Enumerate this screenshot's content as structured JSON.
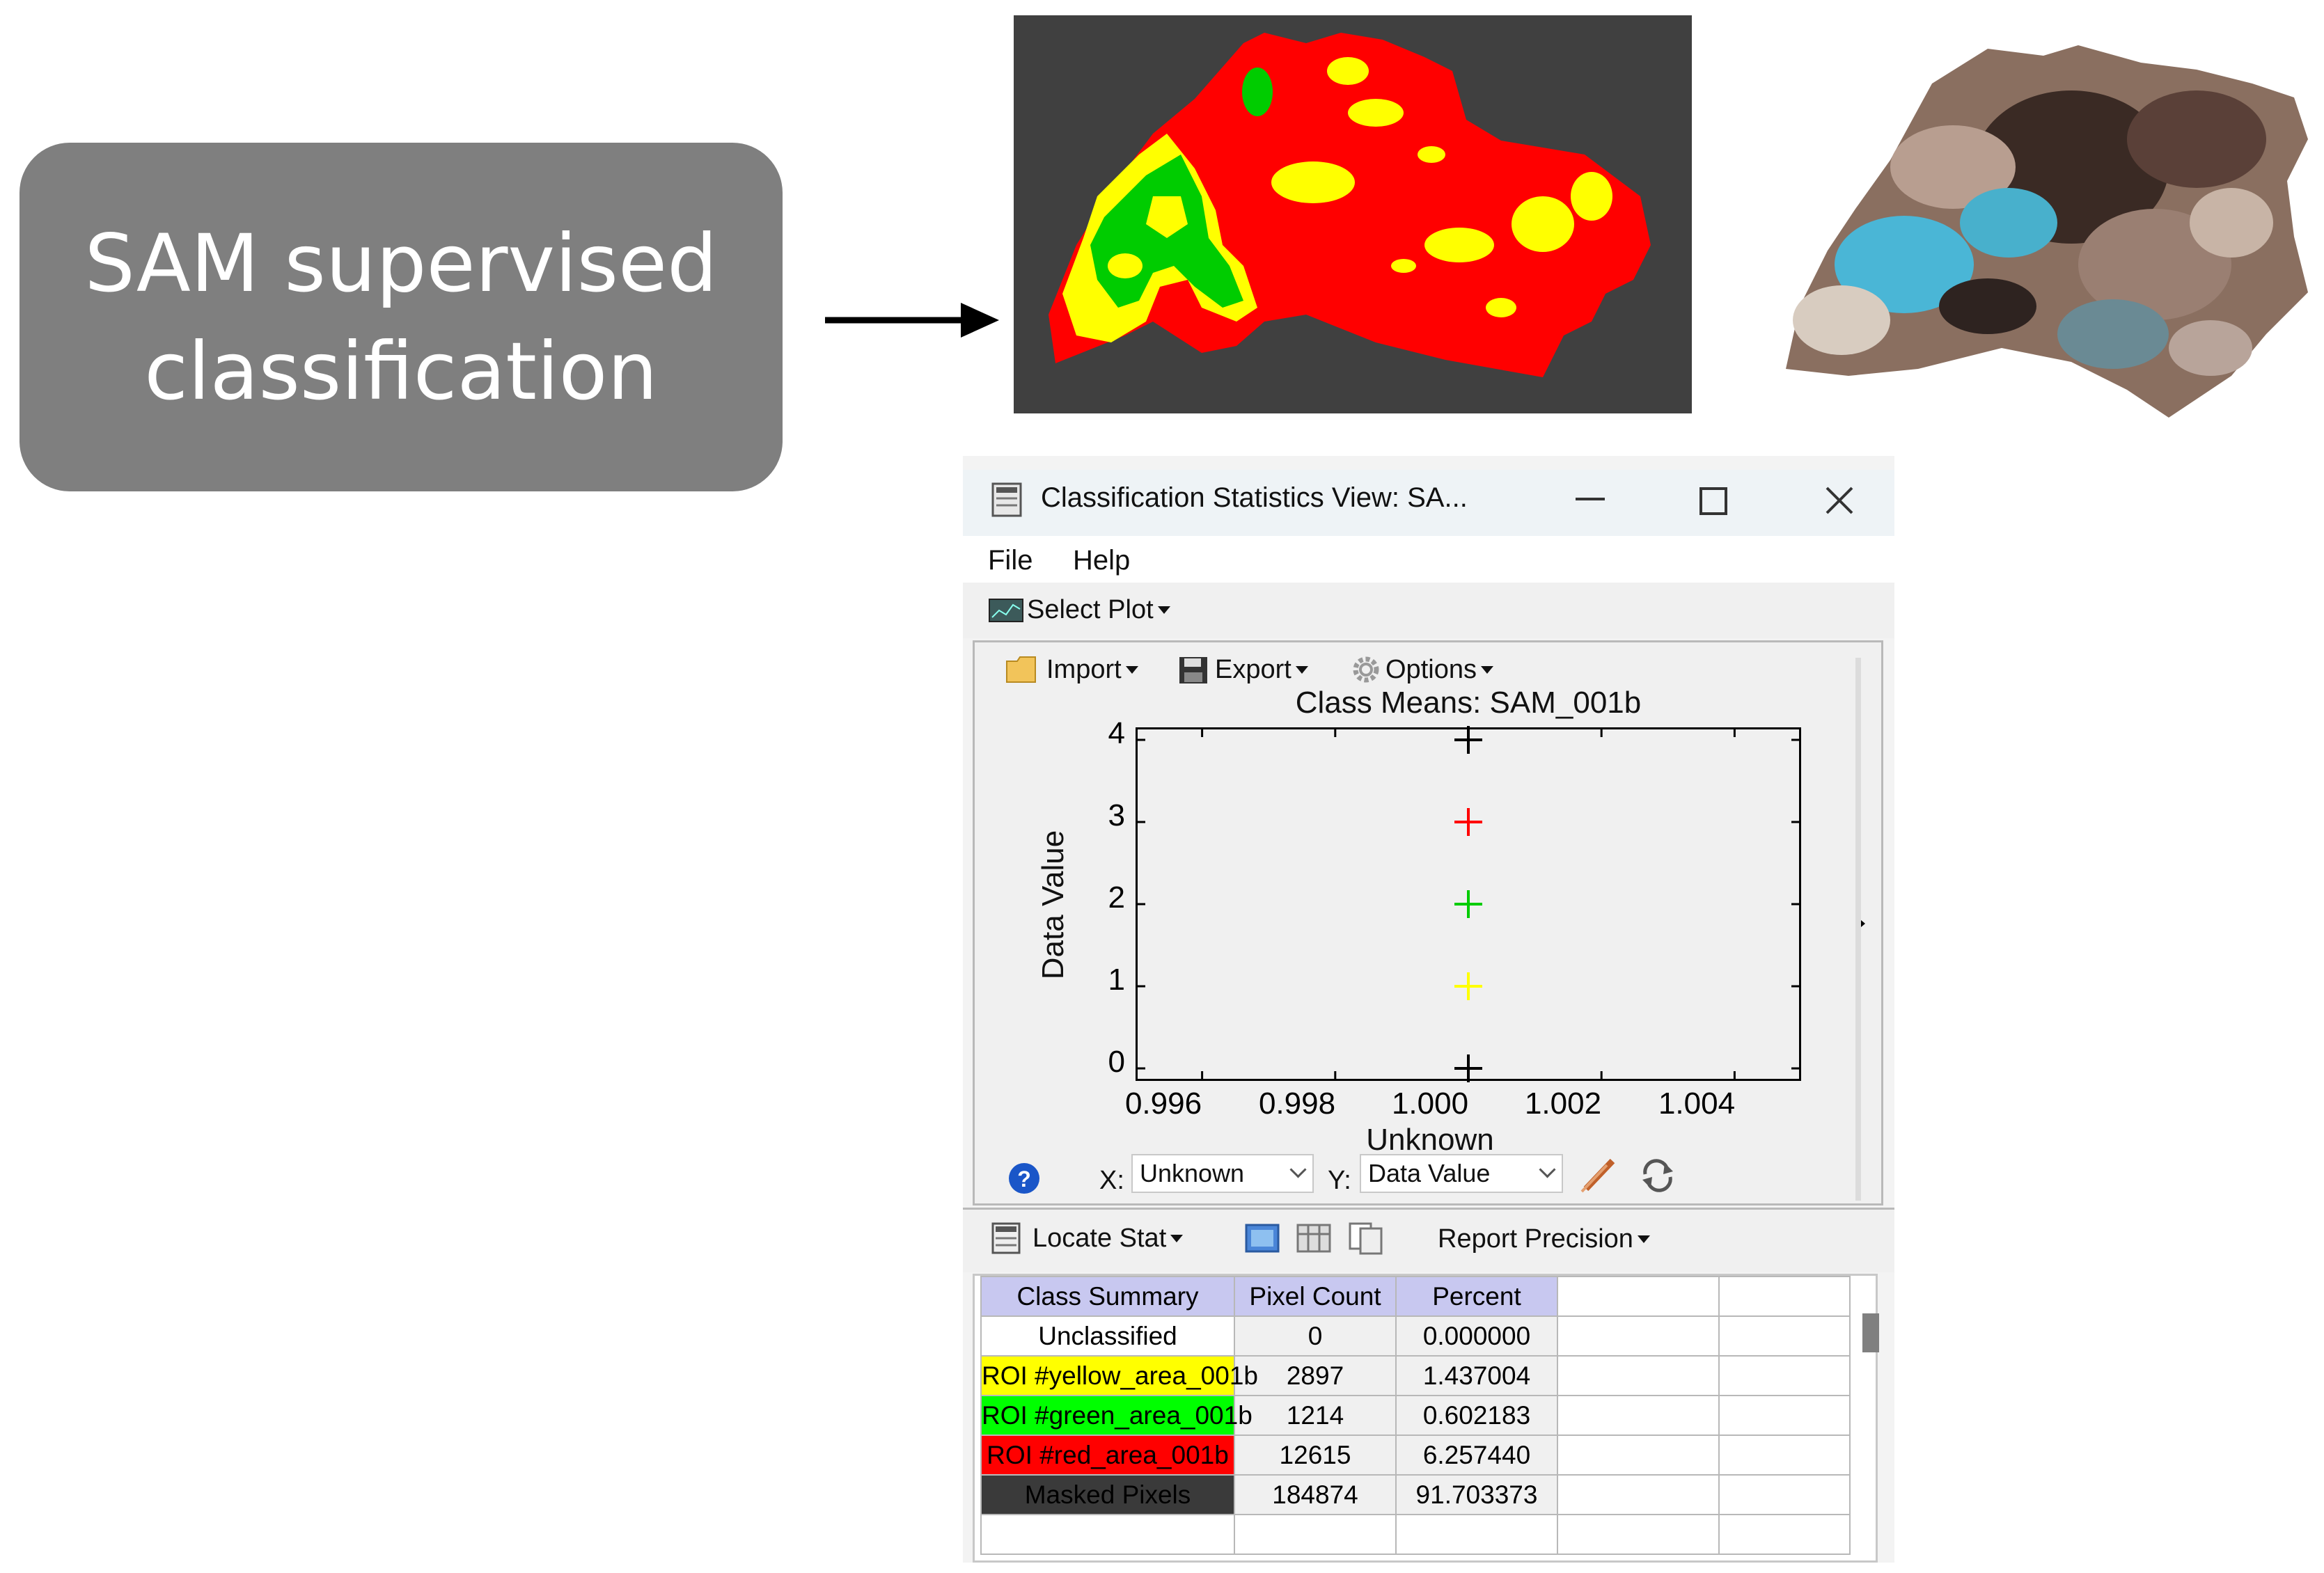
{
  "label_box": {
    "line1": "SAM supervised",
    "line2": "classification"
  },
  "window": {
    "title": "Classification Statistics View: SA...",
    "menu": [
      "File",
      "Help"
    ],
    "select_plot_label": "Select Plot",
    "import_label": "Import",
    "export_label": "Export",
    "options_label": "Options",
    "x_label": "X:",
    "x_value": "Unknown",
    "y_label": "Y:",
    "y_value": "Data Value",
    "locate_stat_label": "Locate Stat",
    "report_precision_label": "Report Precision"
  },
  "chart_data": {
    "type": "scatter",
    "title": "Class Means: SAM_001b",
    "xlabel": "Unknown",
    "ylabel": "Data Value",
    "xlim": [
      0.995,
      1.005
    ],
    "ylim": [
      0,
      4
    ],
    "x_ticks": [
      "0.996",
      "0.998",
      "1.000",
      "1.002",
      "1.004"
    ],
    "y_ticks": [
      "0",
      "1",
      "2",
      "3",
      "4"
    ],
    "points": [
      {
        "x": 1.0,
        "y": 0,
        "color": "#000000"
      },
      {
        "x": 1.0,
        "y": 1,
        "color": "#ffff00"
      },
      {
        "x": 1.0,
        "y": 2,
        "color": "#00cc00"
      },
      {
        "x": 1.0,
        "y": 3,
        "color": "#ff0000"
      },
      {
        "x": 1.0,
        "y": 4,
        "color": "#000000"
      }
    ]
  },
  "table": {
    "headers": [
      "Class Summary",
      "Pixel Count",
      "Percent"
    ],
    "rows": [
      {
        "name": "Unclassified",
        "count": "0",
        "percent": "0.000000",
        "color": "#ffffff",
        "text": "#000000"
      },
      {
        "name": "ROI #yellow_area_001b",
        "count": "2897",
        "percent": "1.437004",
        "color": "#ffff00",
        "text": "#000000"
      },
      {
        "name": "ROI #green_area_001b",
        "count": "1214",
        "percent": "0.602183",
        "color": "#00ff00",
        "text": "#000000"
      },
      {
        "name": "ROI #red_area_001b",
        "count": "12615",
        "percent": "6.257440",
        "color": "#ff0000",
        "text": "#000000"
      },
      {
        "name": "Masked Pixels",
        "count": "184874",
        "percent": "91.703373",
        "color": "#3a3a3a",
        "text": "#000000"
      }
    ]
  },
  "colors": {
    "class_red": "#ff0000",
    "class_yellow": "#ffff00",
    "class_green": "#00ff00",
    "map_background": "#404040",
    "label_box": "#7f7f7f"
  }
}
